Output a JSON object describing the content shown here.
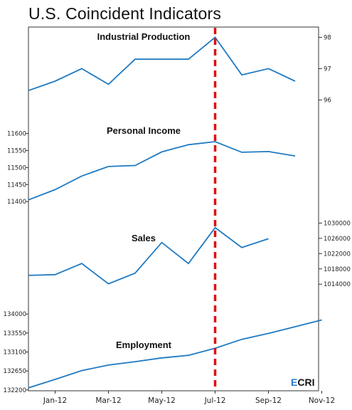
{
  "title": "U.S. Coincident Indicators",
  "logo": {
    "text": "ECRI",
    "letters": [
      "E",
      "C",
      "R",
      "I"
    ]
  },
  "colors": {
    "line": "#1f7ac2",
    "marker": "#dd1111",
    "logo_accent": "#2a7ad0",
    "logo_text": "#111111"
  },
  "chart_data": {
    "type": "line",
    "x": [
      "Jan-12",
      "Feb-12",
      "Mar-12",
      "Apr-12",
      "May-12",
      "Jun-12",
      "Jul-12",
      "Aug-12",
      "Sep-12",
      "Oct-12",
      "Nov-12"
    ],
    "xticks": [
      "Jan-12",
      "Mar-12",
      "May-12",
      "Jul-12",
      "Sep-12",
      "Nov-12"
    ],
    "marker_x": "Jul-12",
    "panels": [
      {
        "label": "Industrial Production",
        "axis": "right",
        "ylim": [
          95.6,
          98.1
        ],
        "yticks": [
          96,
          97,
          98
        ],
        "x": [
          "Dec-11",
          "Jan-12",
          "Feb-12",
          "Mar-12",
          "Apr-12",
          "May-12",
          "Jun-12",
          "Jul-12",
          "Aug-12",
          "Sep-12",
          "Oct-12"
        ],
        "values": [
          96.3,
          96.6,
          97.0,
          96.5,
          97.3,
          97.3,
          97.3,
          98.0,
          96.8,
          97.0,
          96.6
        ]
      },
      {
        "label": "Personal Income",
        "axis": "left",
        "ylim": [
          11392,
          11620
        ],
        "yticks": [
          11400,
          11450,
          11500,
          11550,
          11600
        ],
        "x": [
          "Dec-11",
          "Jan-12",
          "Feb-12",
          "Mar-12",
          "Apr-12",
          "May-12",
          "Jun-12",
          "Jul-12",
          "Aug-12",
          "Sep-12",
          "Oct-12"
        ],
        "values": [
          11405,
          11435,
          11475,
          11503,
          11506,
          11546,
          11567,
          11576,
          11545,
          11547,
          11534
        ]
      },
      {
        "label": "Sales",
        "axis": "right",
        "ylim": [
          1010500,
          1031000
        ],
        "yticks": [
          1014000,
          1018000,
          1022000,
          1026000,
          1030000
        ],
        "x": [
          "Dec-11",
          "Jan-12",
          "Feb-12",
          "Mar-12",
          "Apr-12",
          "May-12",
          "Jun-12",
          "Jul-12",
          "Aug-12",
          "Sep-12"
        ],
        "values": [
          1016300,
          1016500,
          1019400,
          1014100,
          1016900,
          1024900,
          1019400,
          1028800,
          1023600,
          1025900
        ]
      },
      {
        "label": "Employment",
        "axis": "left",
        "ylim": [
          132180,
          134020
        ],
        "yticks": [
          132200,
          132650,
          133100,
          133550,
          134000
        ],
        "x": [
          "Dec-11",
          "Jan-12",
          "Feb-12",
          "Mar-12",
          "Apr-12",
          "May-12",
          "Jun-12",
          "Jul-12",
          "Aug-12",
          "Sep-12",
          "Oct-12",
          "Nov-12"
        ],
        "values": [
          132250,
          132450,
          132660,
          132790,
          132870,
          132960,
          133020,
          133190,
          133400,
          133540,
          133700,
          133860
        ]
      }
    ]
  }
}
